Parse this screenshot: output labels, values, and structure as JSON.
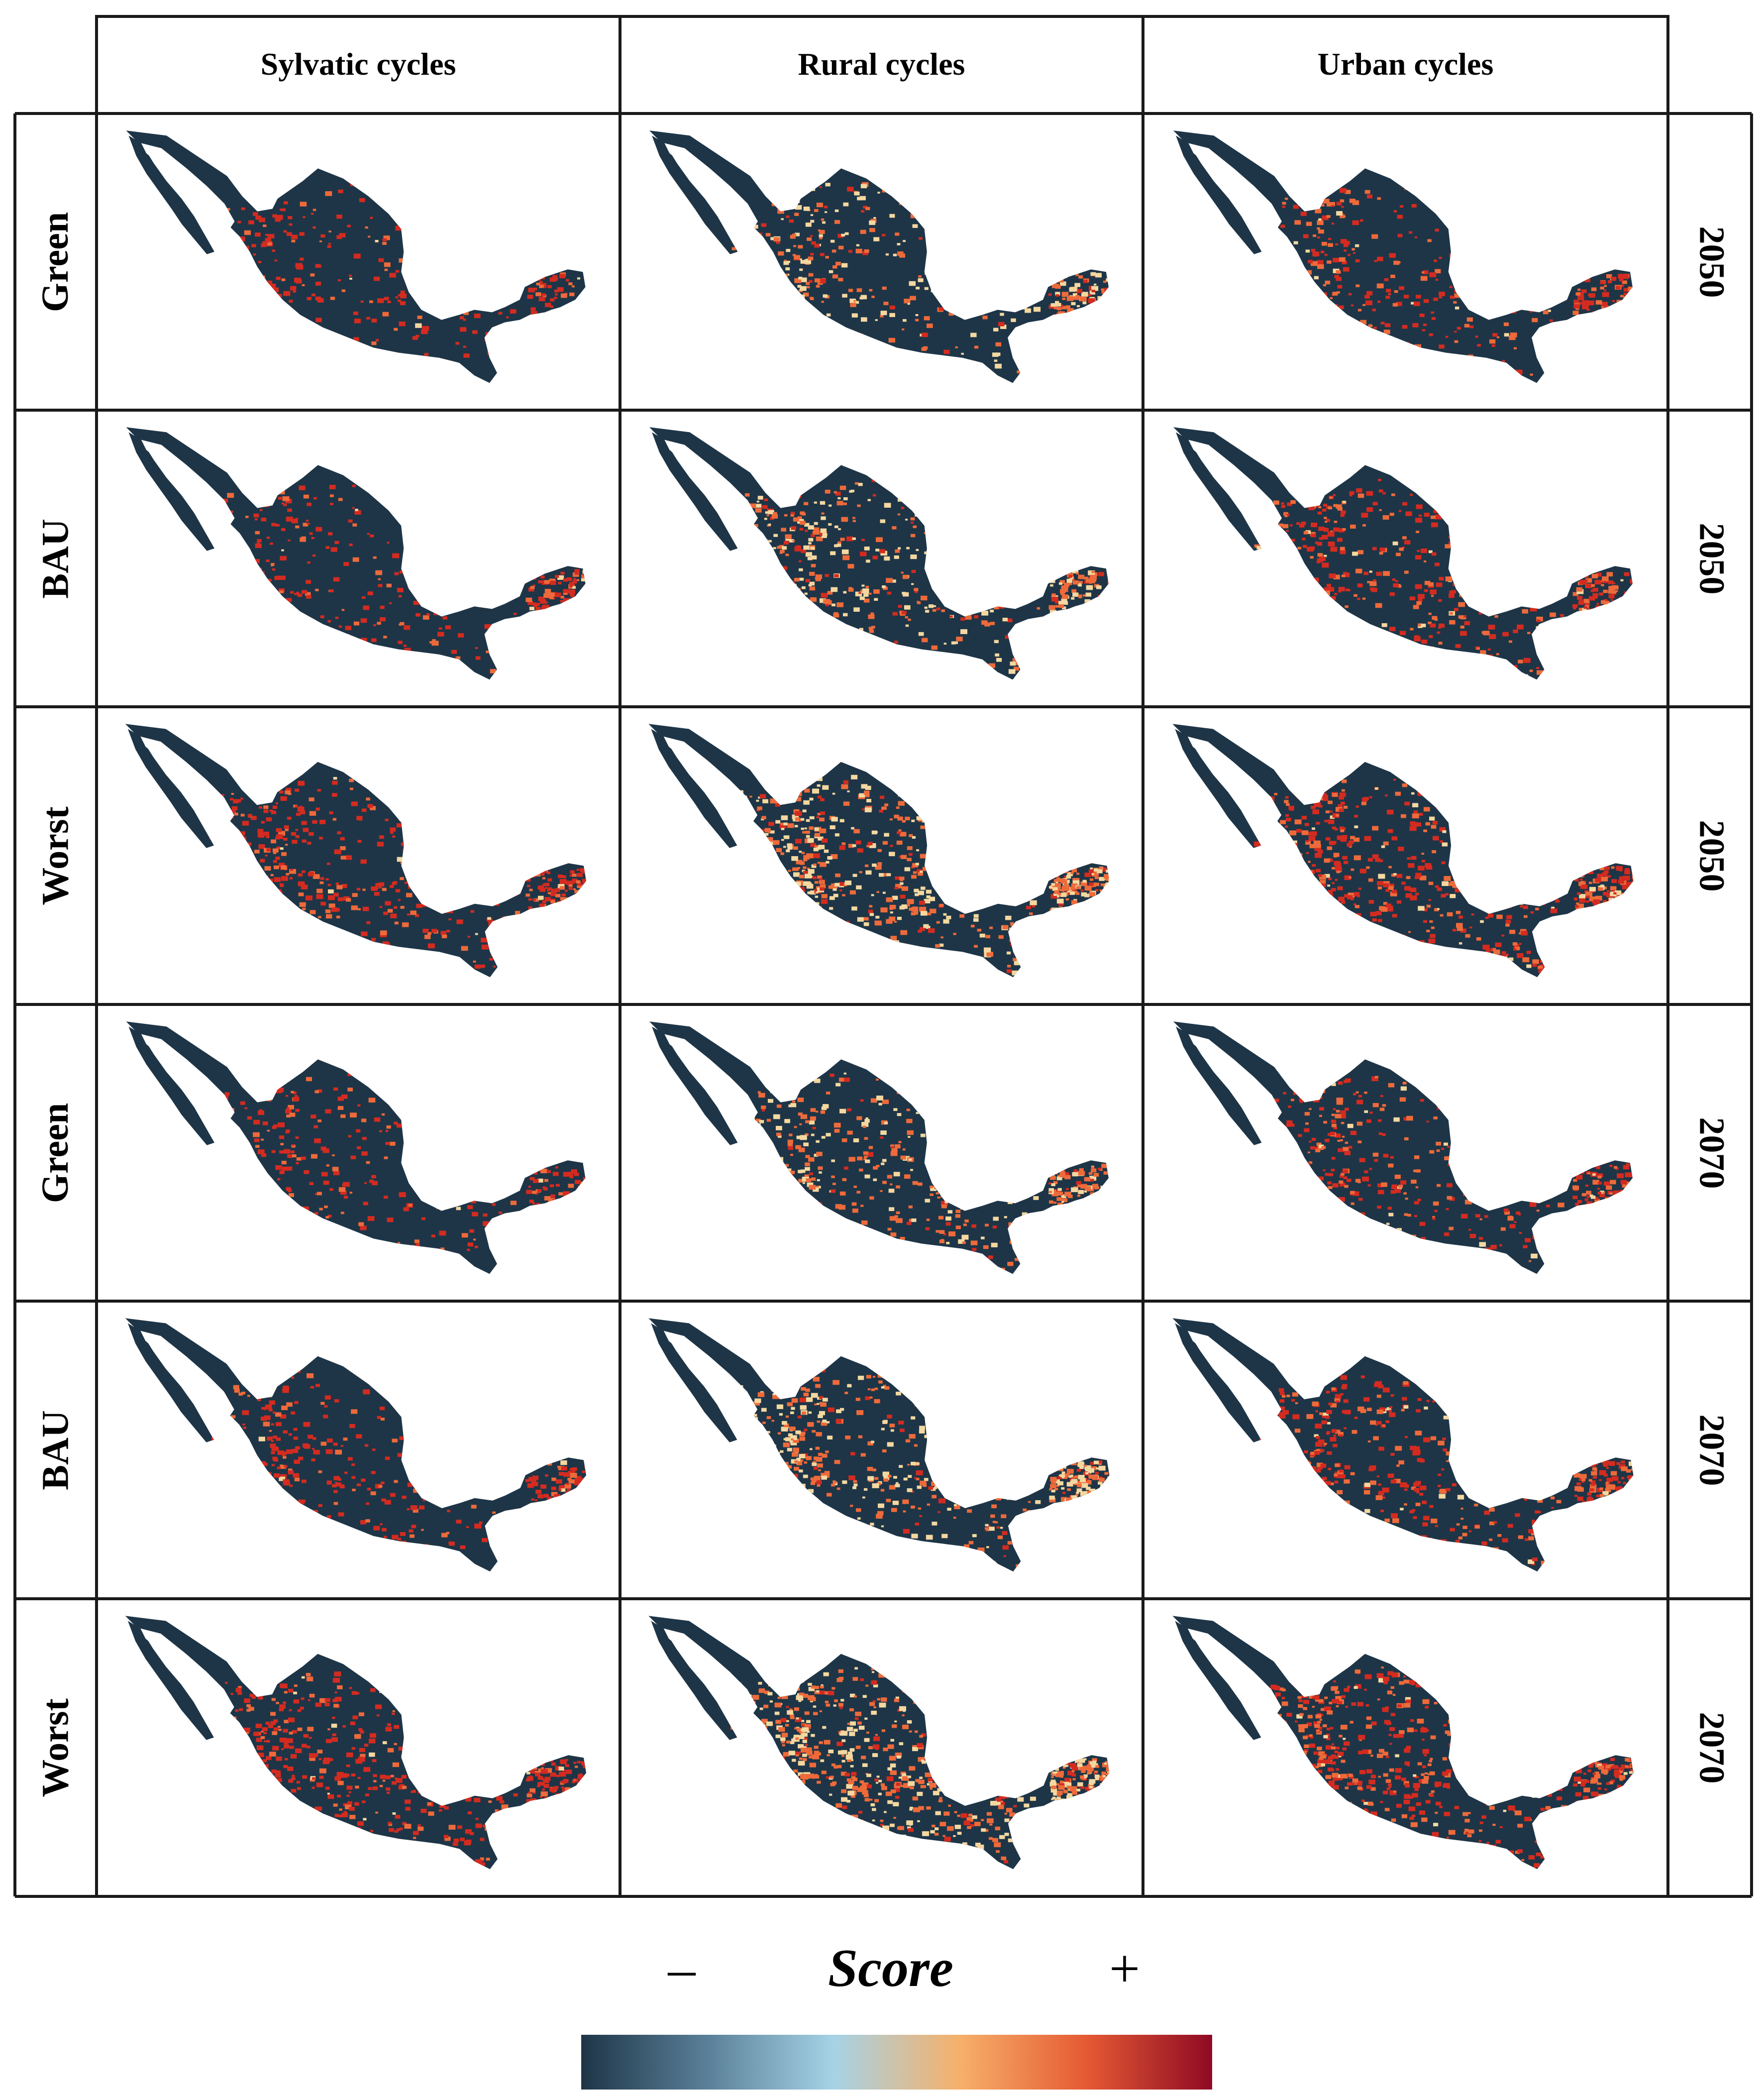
{
  "columns": [
    {
      "id": "sylvatic",
      "label": "Sylvatic cycles"
    },
    {
      "id": "rural",
      "label": "Rural cycles"
    },
    {
      "id": "urban",
      "label": "Urban cycles"
    }
  ],
  "rows": [
    {
      "scenario": "Green",
      "year": "2050"
    },
    {
      "scenario": "BAU",
      "year": "2050"
    },
    {
      "scenario": "Worst",
      "year": "2050"
    },
    {
      "scenario": "Green",
      "year": "2070"
    },
    {
      "scenario": "BAU",
      "year": "2070"
    },
    {
      "scenario": "Worst",
      "year": "2070"
    }
  ],
  "legend": {
    "title": "Score",
    "low_symbol": "–",
    "high_symbol": "+",
    "colors": [
      "#1e3547",
      "#5a8099",
      "#a6d3e6",
      "#f6b06a",
      "#e55a33",
      "#8e0a24"
    ]
  },
  "palette": {
    "base": "#1e3547",
    "high": "#d42b20",
    "mid": "#ee6a3a",
    "low": "#f4d8a0"
  }
}
